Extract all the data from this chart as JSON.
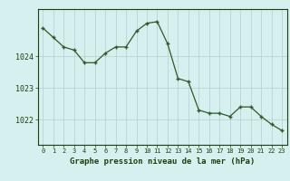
{
  "hours": [
    0,
    1,
    2,
    3,
    4,
    5,
    6,
    7,
    8,
    9,
    10,
    11,
    12,
    13,
    14,
    15,
    16,
    17,
    18,
    19,
    20,
    21,
    22,
    23
  ],
  "pressure": [
    1024.9,
    1024.6,
    1024.3,
    1024.2,
    1023.8,
    1023.8,
    1024.1,
    1024.3,
    1024.3,
    1024.8,
    1025.05,
    1025.1,
    1024.4,
    1023.3,
    1023.2,
    1022.3,
    1022.2,
    1022.2,
    1022.1,
    1022.4,
    1022.4,
    1022.1,
    1021.85,
    1021.65
  ],
  "line_color": "#2d5a27",
  "marker_color": "#2d5a27",
  "bg_color": "#d6f0ef",
  "grid_color": "#b0d0d0",
  "axis_label_color": "#1a4010",
  "xlabel": "Graphe pression niveau de la mer (hPa)",
  "yticks": [
    1022,
    1023,
    1024
  ],
  "ylim": [
    1021.2,
    1025.5
  ],
  "xlim": [
    -0.5,
    23.5
  ],
  "xtick_fontsize": 5.0,
  "ytick_fontsize": 6.0,
  "xlabel_fontsize": 6.5
}
